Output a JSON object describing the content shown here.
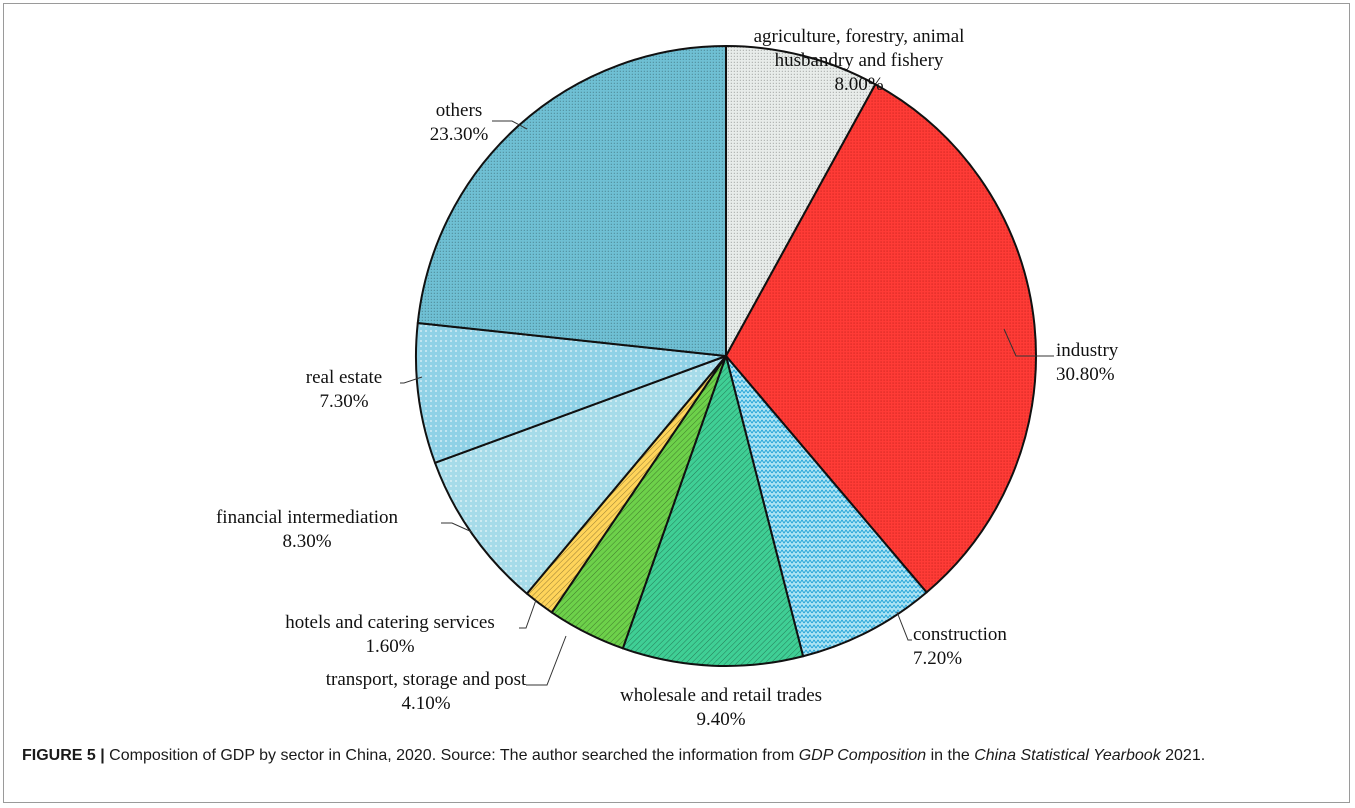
{
  "chart_data": {
    "type": "pie",
    "title": "",
    "start": "top, clockwise",
    "slices": [
      {
        "label_lines": [
          "agriculture, forestry, animal",
          "husbandry and fishery"
        ],
        "value_text": "8.00%",
        "value": 8.0,
        "fill": "#e8ecea",
        "pattern": "fine-dots"
      },
      {
        "label_lines": [
          "industry"
        ],
        "value_text": "30.80%",
        "value": 30.8,
        "fill": "#ff3b36",
        "pattern": "dense-dots"
      },
      {
        "label_lines": [
          "construction"
        ],
        "value_text": "7.20%",
        "value": 7.2,
        "fill": "#ace3f3",
        "pattern": "zigzag"
      },
      {
        "label_lines": [
          "wholesale and retail trades"
        ],
        "value_text": "9.40%",
        "value": 9.4,
        "fill": "#3fcf95",
        "pattern": "diagonal-lines"
      },
      {
        "label_lines": [
          "transport, storage and post"
        ],
        "value_text": "4.10%",
        "value": 4.1,
        "fill": "#6dd14a",
        "pattern": "diagonal-lines"
      },
      {
        "label_lines": [
          "hotels and catering services"
        ],
        "value_text": "1.60%",
        "value": 1.6,
        "fill": "#ffd45a",
        "pattern": "diagonal-lines"
      },
      {
        "label_lines": [
          "financial intermediation"
        ],
        "value_text": "8.30%",
        "value": 8.3,
        "fill": "#a6dbe9",
        "pattern": "small-dots"
      },
      {
        "label_lines": [
          "real estate"
        ],
        "value_text": "7.30%",
        "value": 7.3,
        "fill": "#8fd1e6",
        "pattern": "small-dots"
      },
      {
        "label_lines": [
          "others"
        ],
        "value_text": "23.30%",
        "value": 23.3,
        "fill": "#6fc0d4",
        "pattern": "fine-dots"
      }
    ]
  },
  "caption": {
    "label": "FIGURE 5 |",
    "text_before": " Composition of GDP by sector in China, 2020. Source: The author searched the information from ",
    "italic_1": "GDP Composition",
    "text_middle": " in the ",
    "italic_2": "China Statistical Yearbook",
    "text_after": " 2021."
  }
}
